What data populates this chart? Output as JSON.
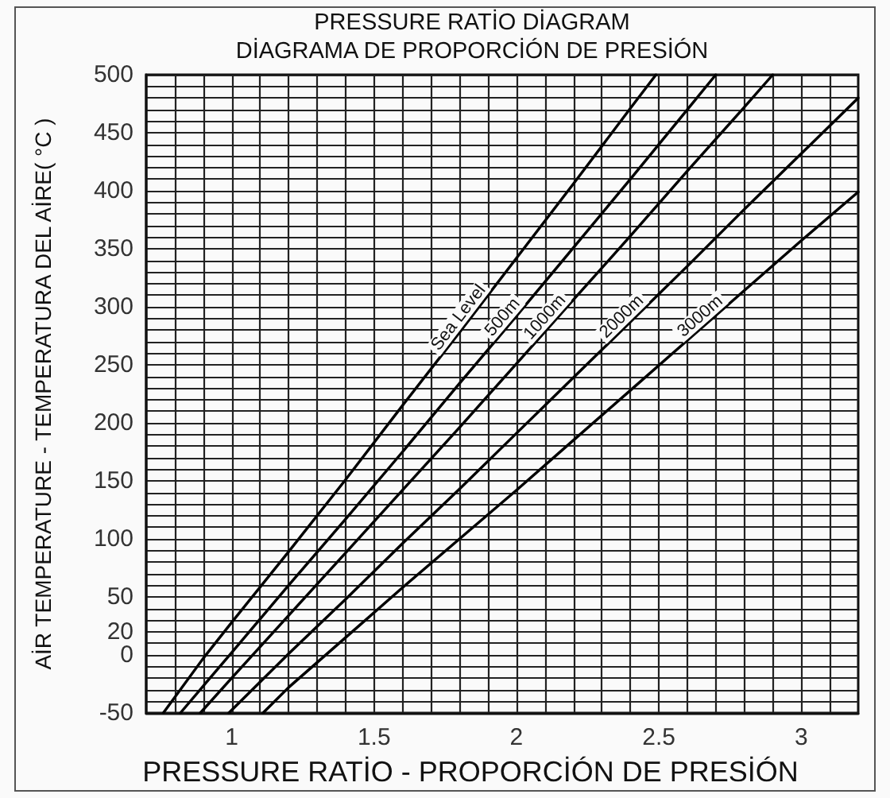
{
  "chart_data": {
    "type": "line",
    "title": "PRESSURE RATİO DİAGRAM",
    "subtitle": "DİAGRAMA DE PROPORCİÓN DE PRESİÓN",
    "xlabel": "PRESSURE RATİO - PROPORCİÓN DE PRESİÓN",
    "ylabel": "AİR TEMPERATURE - TEMPERATURA DEL AİRE( °C )",
    "xlim": [
      0.7,
      3.2
    ],
    "ylim": [
      -50,
      500
    ],
    "xticks": [
      {
        "value": 0.8,
        "label": null
      },
      {
        "value": 0.9,
        "label": null
      },
      1,
      {
        "value": 1.1,
        "label": null
      },
      {
        "value": 1.2,
        "label": null
      },
      {
        "value": 1.3,
        "label": null
      },
      {
        "value": 1.4,
        "label": null
      },
      1.5,
      {
        "value": 1.6,
        "label": null
      },
      {
        "value": 1.7,
        "label": null
      },
      {
        "value": 1.8,
        "label": null
      },
      {
        "value": 1.9,
        "label": null
      },
      2,
      {
        "value": 2.1,
        "label": null
      },
      {
        "value": 2.2,
        "label": null
      },
      {
        "value": 2.3,
        "label": null
      },
      {
        "value": 2.4,
        "label": null
      },
      2.5,
      {
        "value": 2.6,
        "label": null
      },
      {
        "value": 2.7,
        "label": null
      },
      {
        "value": 2.8,
        "label": null
      },
      {
        "value": 2.9,
        "label": null
      },
      3,
      {
        "value": 3.1,
        "label": null
      }
    ],
    "yticks": [
      -50,
      {
        "value": -40,
        "label": null
      },
      {
        "value": -30,
        "label": null
      },
      {
        "value": -20,
        "label": null
      },
      {
        "value": -10,
        "label": null
      },
      0,
      {
        "value": 10,
        "label": null
      },
      20,
      {
        "value": 30,
        "label": null
      },
      {
        "value": 40,
        "label": null
      },
      50,
      {
        "value": 60,
        "label": null
      },
      {
        "value": 70,
        "label": null
      },
      {
        "value": 80,
        "label": null
      },
      {
        "value": 90,
        "label": null
      },
      100,
      {
        "value": 110,
        "label": null
      },
      {
        "value": 120,
        "label": null
      },
      {
        "value": 130,
        "label": null
      },
      {
        "value": 140,
        "label": null
      },
      150,
      {
        "value": 160,
        "label": null
      },
      {
        "value": 170,
        "label": null
      },
      {
        "value": 180,
        "label": null
      },
      {
        "value": 190,
        "label": null
      },
      200,
      {
        "value": 210,
        "label": null
      },
      {
        "value": 220,
        "label": null
      },
      {
        "value": 230,
        "label": null
      },
      {
        "value": 240,
        "label": null
      },
      250,
      {
        "value": 260,
        "label": null
      },
      {
        "value": 270,
        "label": null
      },
      {
        "value": 280,
        "label": null
      },
      {
        "value": 290,
        "label": null
      },
      300,
      {
        "value": 310,
        "label": null
      },
      {
        "value": 320,
        "label": null
      },
      {
        "value": 330,
        "label": null
      },
      {
        "value": 340,
        "label": null
      },
      350,
      {
        "value": 360,
        "label": null
      },
      {
        "value": 370,
        "label": null
      },
      {
        "value": 380,
        "label": null
      },
      {
        "value": 390,
        "label": null
      },
      400,
      {
        "value": 410,
        "label": null
      },
      {
        "value": 420,
        "label": null
      },
      {
        "value": 430,
        "label": null
      },
      {
        "value": 440,
        "label": null
      },
      450,
      {
        "value": 460,
        "label": null
      },
      {
        "value": 470,
        "label": null
      },
      {
        "value": 480,
        "label": null
      },
      {
        "value": 490,
        "label": null
      },
      500
    ],
    "grid": true,
    "line_style": "solid",
    "series": [
      {
        "name": "Sea Level",
        "color": "#000000",
        "x": [
          0.76,
          0.9,
          1.0,
          1.2,
          1.4,
          1.6,
          1.8,
          2.0,
          2.2,
          2.4,
          2.49
        ],
        "values": [
          -50,
          -3,
          28,
          89,
          151,
          215,
          278,
          342,
          406,
          471,
          500
        ]
      },
      {
        "name": "500m",
        "color": "#000000",
        "x": [
          0.82,
          1.0,
          1.2,
          1.4,
          1.6,
          1.8,
          2.0,
          2.2,
          2.4,
          2.6,
          2.7
        ],
        "values": [
          -50,
          2,
          60,
          117,
          175,
          234,
          292,
          351,
          410,
          470,
          500
        ]
      },
      {
        "name": "1000m",
        "color": "#000000",
        "x": [
          0.89,
          1.0,
          1.2,
          1.4,
          1.6,
          1.8,
          2.0,
          2.2,
          2.4,
          2.6,
          2.8,
          2.9
        ],
        "values": [
          -50,
          -20,
          34,
          88,
          142,
          196,
          251,
          306,
          361,
          417,
          472,
          500
        ]
      },
      {
        "name": "2000m",
        "color": "#000000",
        "x": [
          0.99,
          1.2,
          1.4,
          1.6,
          1.8,
          2.0,
          2.2,
          2.4,
          2.6,
          2.8,
          3.0,
          3.2
        ],
        "values": [
          -50,
          1,
          48,
          96,
          143,
          191,
          239,
          287,
          335,
          384,
          432,
          480
        ]
      },
      {
        "name": "3000m",
        "color": "#000000",
        "x": [
          1.11,
          1.2,
          1.4,
          1.6,
          1.8,
          2.0,
          2.2,
          2.4,
          2.6,
          2.8,
          3.0,
          3.2
        ],
        "values": [
          -50,
          -28,
          15,
          58,
          100,
          142,
          185,
          228,
          271,
          314,
          357,
          399
        ]
      }
    ]
  }
}
